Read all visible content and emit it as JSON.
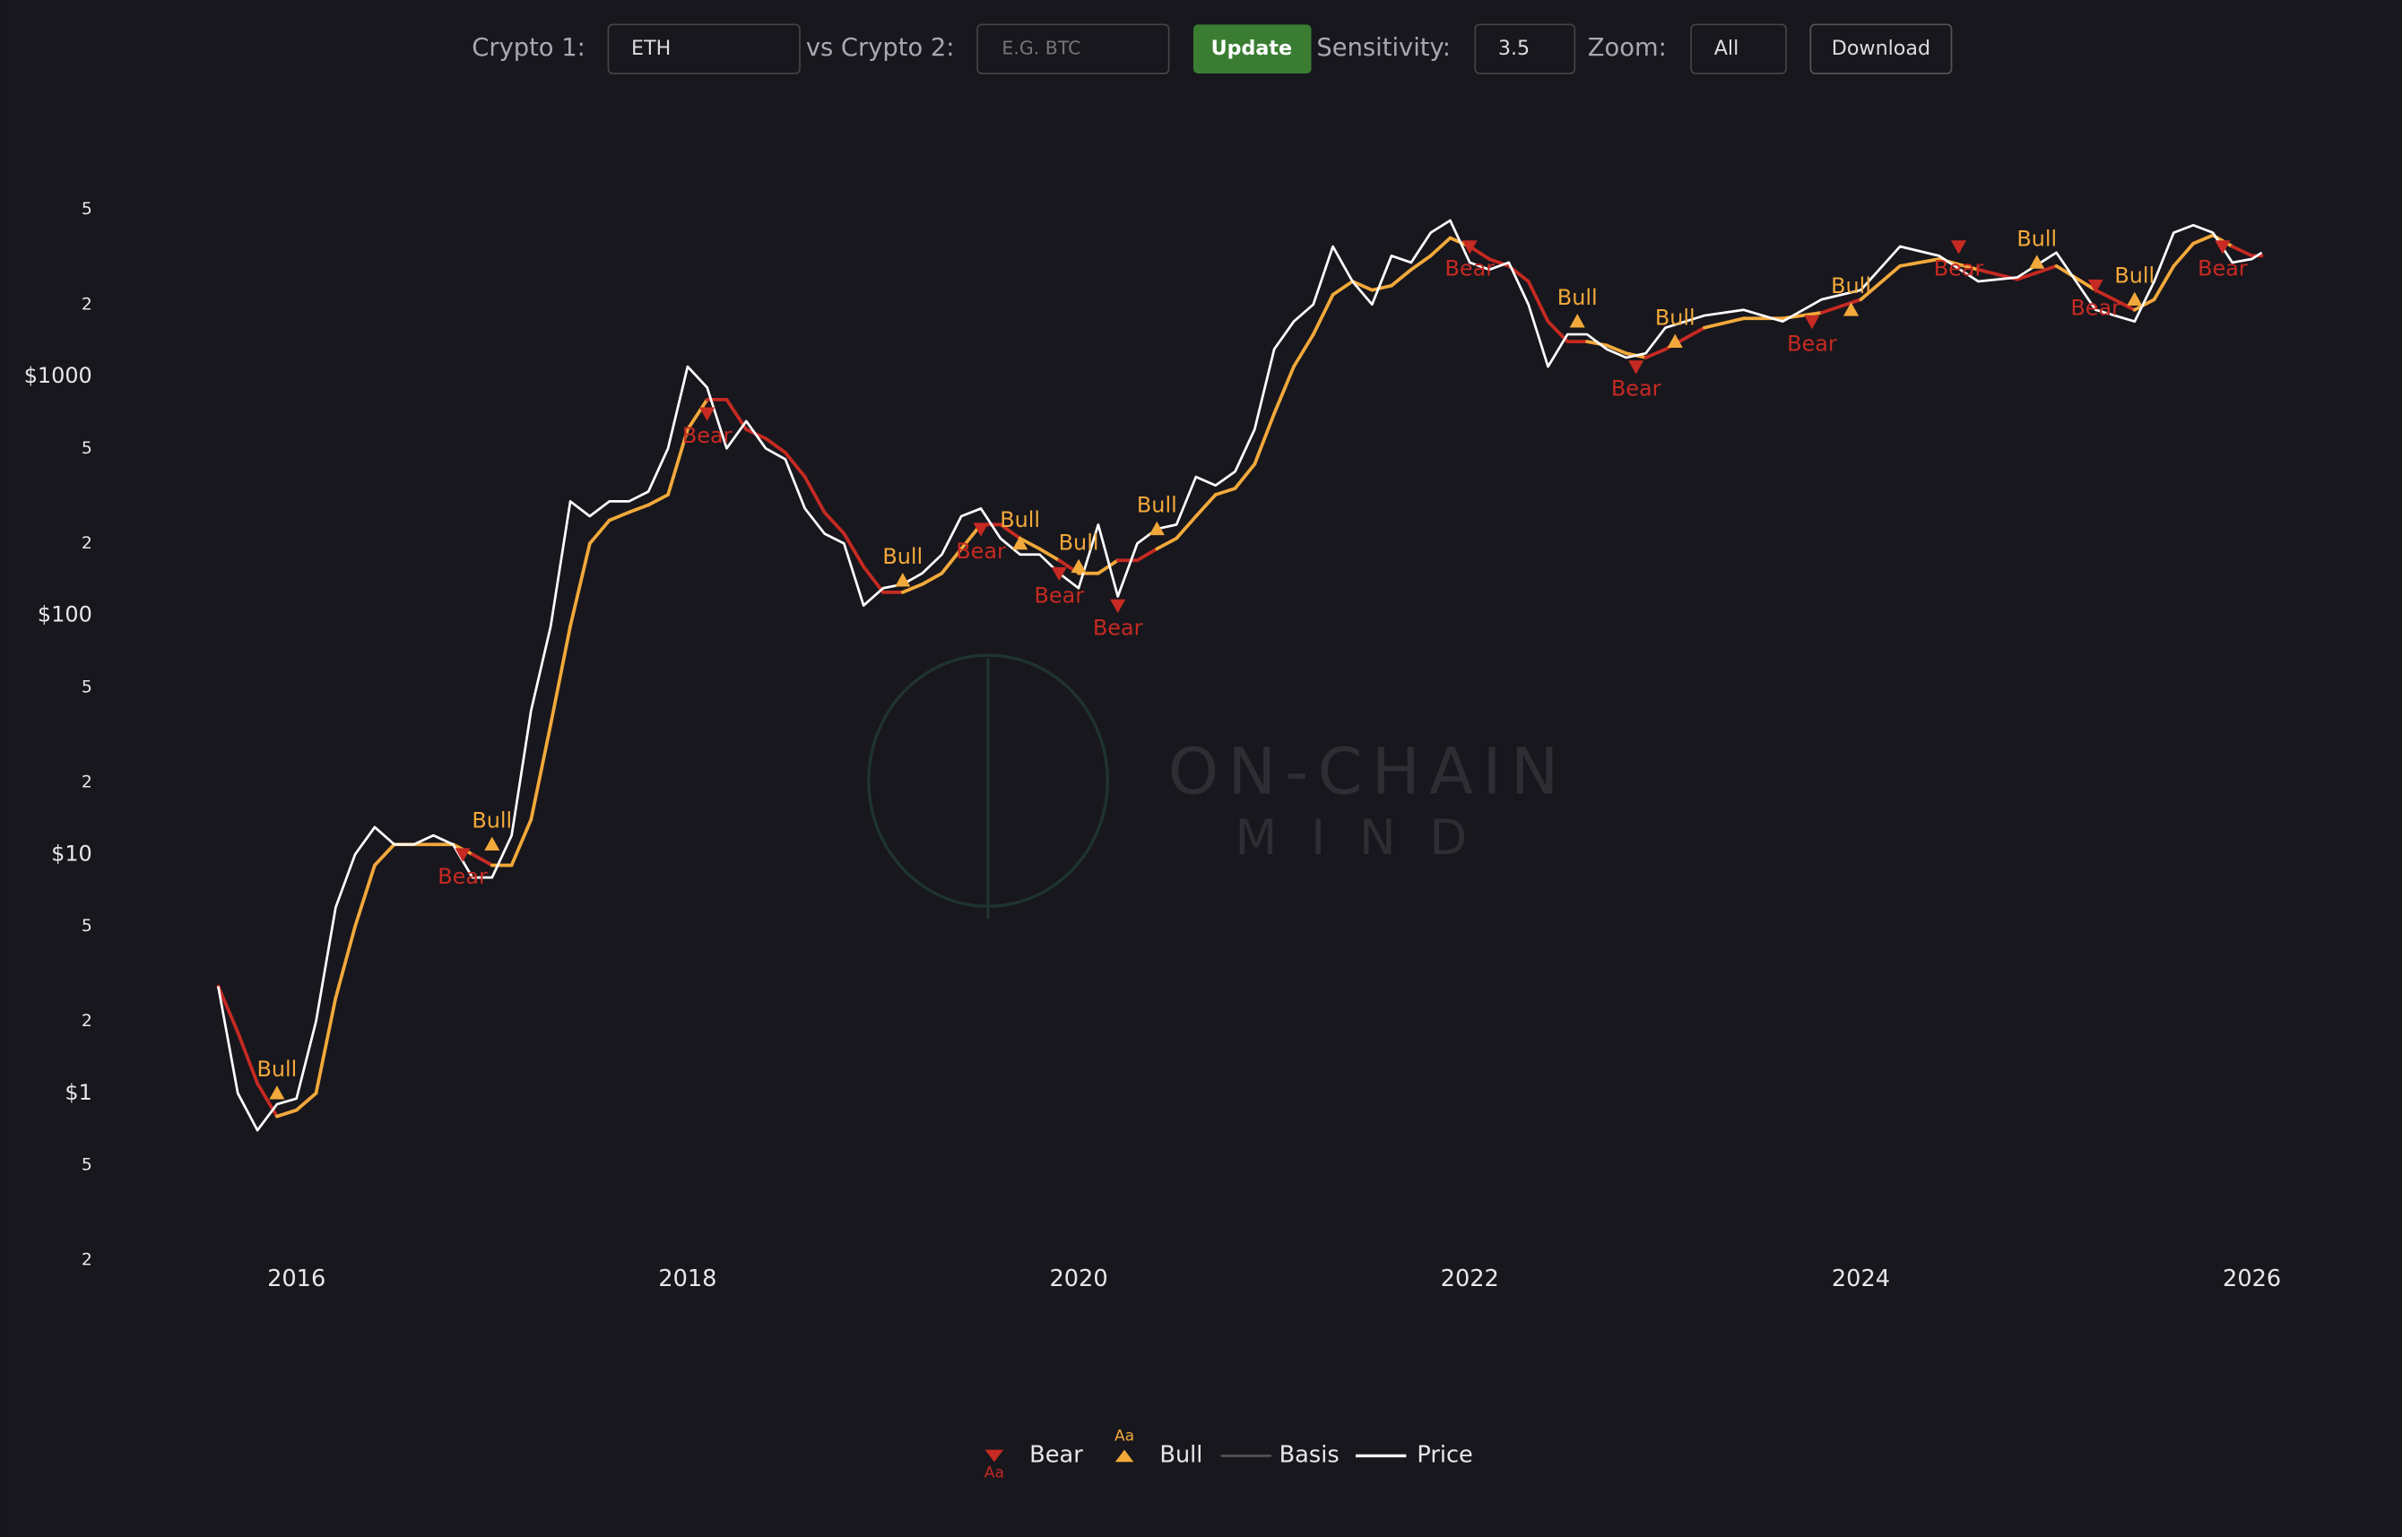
{
  "controls": {
    "crypto1_label": "Crypto 1:",
    "crypto1_value": "ETH",
    "crypto2_label": "vs Crypto 2:",
    "crypto2_placeholder": "E.G. BTC",
    "update": "Update",
    "sensitivity_label": "Sensitivity:",
    "sensitivity_value": "3.5",
    "zoom_label": "Zoom:",
    "zoom_value": "All",
    "download": "Download"
  },
  "watermark": [
    "ON-CHAIN",
    "MIND"
  ],
  "chart_data": {
    "type": "line",
    "log_y": true,
    "xlim": [
      2015.19,
      2026.39
    ],
    "xticks": [
      2016,
      2018,
      2020,
      2022,
      2024,
      2026
    ],
    "ylim": [
      0.145,
      9270
    ],
    "yticks": [
      {
        "value": 0.2,
        "label": "2"
      },
      {
        "value": 0.5,
        "label": "5"
      },
      {
        "value": 1,
        "label": "$1"
      },
      2,
      5,
      {
        "value": 10,
        "label": "$10"
      },
      {
        "value": 20,
        "label": "2"
      },
      {
        "value": 50,
        "label": "5"
      },
      {
        "value": 100,
        "label": "$100"
      },
      {
        "value": 200,
        "label": "2"
      },
      {
        "value": 500,
        "label": "5"
      },
      {
        "value": 1000,
        "label": "$1000"
      },
      {
        "value": 2000,
        "label": "2"
      },
      {
        "value": 5000,
        "label": "5"
      }
    ],
    "x": [
      2015.6,
      2015.7,
      2015.8,
      2015.9,
      2016.0,
      2016.1,
      2016.2,
      2016.3,
      2016.4,
      2016.5,
      2016.6,
      2016.7,
      2016.8,
      2016.9,
      2017.0,
      2017.1,
      2017.2,
      2017.3,
      2017.4,
      2017.5,
      2017.6,
      2017.7,
      2017.8,
      2017.9,
      2018.0,
      2018.1,
      2018.2,
      2018.3,
      2018.4,
      2018.5,
      2018.6,
      2018.7,
      2018.8,
      2018.9,
      2019.0,
      2019.1,
      2019.2,
      2019.3,
      2019.4,
      2019.5,
      2019.6,
      2019.7,
      2019.8,
      2019.9,
      2020.0,
      2020.1,
      2020.2,
      2020.3,
      2020.4,
      2020.5,
      2020.6,
      2020.7,
      2020.8,
      2020.9,
      2021.0,
      2021.1,
      2021.2,
      2021.3,
      2021.4,
      2021.5,
      2021.6,
      2021.7,
      2021.8,
      2021.9,
      2022.0,
      2022.1,
      2022.2,
      2022.3,
      2022.4,
      2022.5,
      2022.6,
      2022.7,
      2022.8,
      2022.9,
      2023.0,
      2023.2,
      2023.4,
      2023.6,
      2023.8,
      2024.0,
      2024.2,
      2024.4,
      2024.6,
      2024.8,
      2025.0,
      2025.2,
      2025.4,
      2025.5,
      2025.6,
      2025.7,
      2025.8,
      2025.9,
      2026.0,
      2026.05
    ],
    "series": [
      {
        "name": "Basis",
        "color": "#555555",
        "values": [
          2.8,
          1.8,
          1.1,
          0.8,
          0.85,
          1.0,
          2.5,
          5,
          9,
          11,
          11,
          11,
          11,
          10,
          9,
          9,
          14,
          35,
          90,
          200,
          250,
          270,
          290,
          320,
          600,
          800,
          800,
          600,
          550,
          480,
          380,
          270,
          220,
          160,
          125,
          125,
          135,
          150,
          190,
          240,
          240,
          210,
          190,
          170,
          150,
          150,
          170,
          170,
          190,
          210,
          260,
          320,
          340,
          430,
          700,
          1100,
          1500,
          2200,
          2500,
          2300,
          2400,
          2800,
          3200,
          3800,
          3500,
          3100,
          2900,
          2500,
          1700,
          1400,
          1400,
          1350,
          1250,
          1200,
          1300,
          1600,
          1750,
          1750,
          1850,
          2100,
          2900,
          3100,
          2800,
          2550,
          2900,
          2300,
          1900,
          2100,
          2900,
          3600,
          3900,
          3500,
          3200,
          3200
        ]
      },
      {
        "name": "Price",
        "color": "#ffffff",
        "values": [
          2.8,
          1.0,
          0.7,
          0.9,
          0.95,
          2,
          6,
          10,
          13,
          11,
          11,
          12,
          11,
          8,
          8,
          12,
          40,
          90,
          300,
          260,
          300,
          300,
          330,
          500,
          1100,
          900,
          500,
          650,
          500,
          450,
          280,
          220,
          200,
          110,
          130,
          135,
          150,
          180,
          260,
          280,
          210,
          180,
          180,
          150,
          130,
          240,
          120,
          200,
          230,
          240,
          380,
          350,
          400,
          600,
          1300,
          1700,
          2000,
          3500,
          2500,
          2000,
          3200,
          3000,
          4000,
          4500,
          3000,
          2800,
          3000,
          2000,
          1100,
          1500,
          1500,
          1300,
          1200,
          1250,
          1600,
          1800,
          1900,
          1700,
          2100,
          2300,
          3500,
          3200,
          2500,
          2600,
          3300,
          1900,
          1700,
          2500,
          4000,
          4300,
          4000,
          3000,
          3100,
          3300
        ]
      }
    ],
    "signal_types": [
      {
        "name": "Bear",
        "color": "#c62a22"
      },
      {
        "name": "Bull",
        "color": "#f2a93b"
      }
    ],
    "legend_marker_text": "Aa",
    "signals": [
      {
        "name": "Bull",
        "x": 2015.9,
        "value": 1.0
      },
      {
        "name": "Bear",
        "x": 2016.85,
        "value": 10
      },
      {
        "name": "Bull",
        "x": 2017.0,
        "value": 11
      },
      {
        "name": "Bear",
        "x": 2018.1,
        "value": 700
      },
      {
        "name": "Bull",
        "x": 2019.1,
        "value": 140
      },
      {
        "name": "Bear",
        "x": 2019.5,
        "value": 230
      },
      {
        "name": "Bull",
        "x": 2019.7,
        "value": 200
      },
      {
        "name": "Bear",
        "x": 2019.9,
        "value": 150
      },
      {
        "name": "Bull",
        "x": 2020.0,
        "value": 160
      },
      {
        "name": "Bear",
        "x": 2020.2,
        "value": 110
      },
      {
        "name": "Bull",
        "x": 2020.4,
        "value": 230
      },
      {
        "name": "Bear",
        "x": 2022.0,
        "value": 3500
      },
      {
        "name": "Bull",
        "x": 2022.55,
        "value": 1700
      },
      {
        "name": "Bear",
        "x": 2022.85,
        "value": 1100
      },
      {
        "name": "Bull",
        "x": 2023.05,
        "value": 1400
      },
      {
        "name": "Bear",
        "x": 2023.75,
        "value": 1700
      },
      {
        "name": "Bull",
        "x": 2023.95,
        "value": 1900
      },
      {
        "name": "Bear",
        "x": 2024.5,
        "value": 3500
      },
      {
        "name": "Bull",
        "x": 2024.9,
        "value": 3000
      },
      {
        "name": "Bear",
        "x": 2025.2,
        "value": 2400
      },
      {
        "name": "Bull",
        "x": 2025.4,
        "value": 2100
      },
      {
        "name": "Bear",
        "x": 2025.85,
        "value": 3500
      }
    ]
  }
}
